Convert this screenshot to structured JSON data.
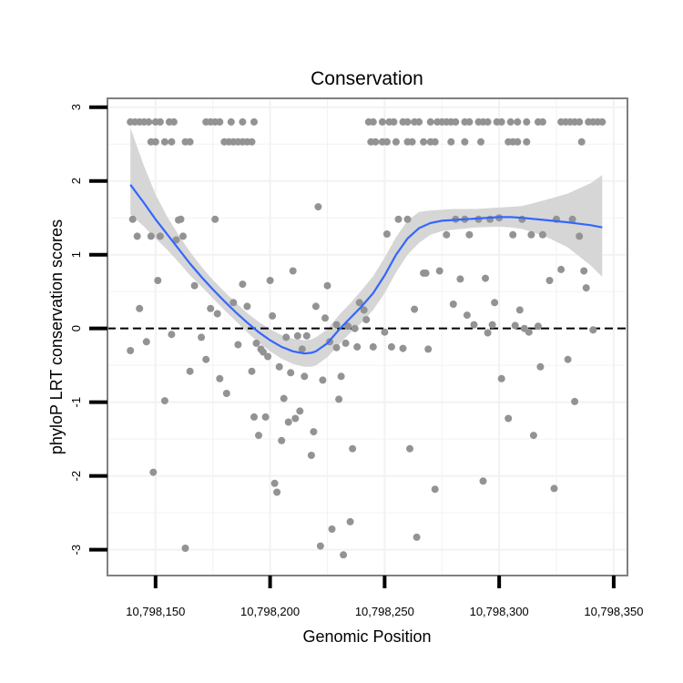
{
  "chart_data": {
    "type": "scatter",
    "title": "Conservation",
    "xlabel": "Genomic Position",
    "ylabel": "phyloP LRT conservation scores",
    "xlim": [
      10798129,
      10798356
    ],
    "ylim": [
      -3.35,
      3.12
    ],
    "x_ticks": [
      10798150,
      10798200,
      10798250,
      10798300,
      10798350
    ],
    "x_tick_labels": [
      "10,798,150",
      "10,798,200",
      "10,798,250",
      "10,798,300",
      "10,798,350"
    ],
    "y_ticks": [
      -3,
      -2,
      -1,
      0,
      1,
      2,
      3
    ],
    "y_tick_labels": [
      "-3",
      "-2",
      "-1",
      "0",
      "1",
      "2",
      "3"
    ],
    "reference_line": {
      "y": 0,
      "style": "dashed"
    },
    "grid": true,
    "colors": {
      "points": "#939393",
      "smooth_line": "#3366ff",
      "confidence_band": "#d6d6d6",
      "panel_border": "#808080",
      "grid": "#f2f2f2",
      "reference_line": "#000000",
      "ticks": "#000000"
    },
    "points": [
      {
        "x": 10798139,
        "y": 2.8
      },
      {
        "x": 10798141,
        "y": 2.8
      },
      {
        "x": 10798143,
        "y": 2.8
      },
      {
        "x": 10798145,
        "y": 2.8
      },
      {
        "x": 10798147,
        "y": 2.8
      },
      {
        "x": 10798150,
        "y": 2.8
      },
      {
        "x": 10798152,
        "y": 2.8
      },
      {
        "x": 10798156,
        "y": 2.8
      },
      {
        "x": 10798158,
        "y": 2.8
      },
      {
        "x": 10798172,
        "y": 2.8
      },
      {
        "x": 10798174,
        "y": 2.8
      },
      {
        "x": 10798176,
        "y": 2.8
      },
      {
        "x": 10798178,
        "y": 2.8
      },
      {
        "x": 10798183,
        "y": 2.8
      },
      {
        "x": 10798188,
        "y": 2.8
      },
      {
        "x": 10798193,
        "y": 2.8
      },
      {
        "x": 10798148,
        "y": 2.53
      },
      {
        "x": 10798150,
        "y": 2.53
      },
      {
        "x": 10798154,
        "y": 2.53
      },
      {
        "x": 10798157,
        "y": 2.53
      },
      {
        "x": 10798163,
        "y": 2.53
      },
      {
        "x": 10798165,
        "y": 2.53
      },
      {
        "x": 10798180,
        "y": 2.53
      },
      {
        "x": 10798182,
        "y": 2.53
      },
      {
        "x": 10798184,
        "y": 2.53
      },
      {
        "x": 10798186,
        "y": 2.53
      },
      {
        "x": 10798188,
        "y": 2.53
      },
      {
        "x": 10798190,
        "y": 2.53
      },
      {
        "x": 10798192,
        "y": 2.53
      },
      {
        "x": 10798243,
        "y": 2.8
      },
      {
        "x": 10798245,
        "y": 2.8
      },
      {
        "x": 10798249,
        "y": 2.8
      },
      {
        "x": 10798252,
        "y": 2.8
      },
      {
        "x": 10798254,
        "y": 2.8
      },
      {
        "x": 10798258,
        "y": 2.8
      },
      {
        "x": 10798260,
        "y": 2.8
      },
      {
        "x": 10798263,
        "y": 2.8
      },
      {
        "x": 10798265,
        "y": 2.8
      },
      {
        "x": 10798270,
        "y": 2.8
      },
      {
        "x": 10798273,
        "y": 2.8
      },
      {
        "x": 10798275,
        "y": 2.8
      },
      {
        "x": 10798277,
        "y": 2.8
      },
      {
        "x": 10798279,
        "y": 2.8
      },
      {
        "x": 10798281,
        "y": 2.8
      },
      {
        "x": 10798285,
        "y": 2.8
      },
      {
        "x": 10798287,
        "y": 2.8
      },
      {
        "x": 10798291,
        "y": 2.8
      },
      {
        "x": 10798293,
        "y": 2.8
      },
      {
        "x": 10798295,
        "y": 2.8
      },
      {
        "x": 10798299,
        "y": 2.8
      },
      {
        "x": 10798301,
        "y": 2.8
      },
      {
        "x": 10798305,
        "y": 2.8
      },
      {
        "x": 10798308,
        "y": 2.8
      },
      {
        "x": 10798312,
        "y": 2.8
      },
      {
        "x": 10798317,
        "y": 2.8
      },
      {
        "x": 10798319,
        "y": 2.8
      },
      {
        "x": 10798327,
        "y": 2.8
      },
      {
        "x": 10798329,
        "y": 2.8
      },
      {
        "x": 10798331,
        "y": 2.8
      },
      {
        "x": 10798333,
        "y": 2.8
      },
      {
        "x": 10798335,
        "y": 2.8
      },
      {
        "x": 10798339,
        "y": 2.8
      },
      {
        "x": 10798341,
        "y": 2.8
      },
      {
        "x": 10798343,
        "y": 2.8
      },
      {
        "x": 10798345,
        "y": 2.8
      },
      {
        "x": 10798244,
        "y": 2.53
      },
      {
        "x": 10798246,
        "y": 2.53
      },
      {
        "x": 10798249,
        "y": 2.53
      },
      {
        "x": 10798251,
        "y": 2.53
      },
      {
        "x": 10798255,
        "y": 2.53
      },
      {
        "x": 10798260,
        "y": 2.53
      },
      {
        "x": 10798262,
        "y": 2.53
      },
      {
        "x": 10798267,
        "y": 2.53
      },
      {
        "x": 10798270,
        "y": 2.53
      },
      {
        "x": 10798272,
        "y": 2.53
      },
      {
        "x": 10798279,
        "y": 2.53
      },
      {
        "x": 10798285,
        "y": 2.53
      },
      {
        "x": 10798292,
        "y": 2.53
      },
      {
        "x": 10798304,
        "y": 2.53
      },
      {
        "x": 10798306,
        "y": 2.53
      },
      {
        "x": 10798308,
        "y": 2.53
      },
      {
        "x": 10798312,
        "y": 2.53
      },
      {
        "x": 10798336,
        "y": 2.53
      },
      {
        "x": 10798140,
        "y": 1.48
      },
      {
        "x": 10798142,
        "y": 1.25
      },
      {
        "x": 10798143,
        "y": 0.27
      },
      {
        "x": 10798139,
        "y": -0.3
      },
      {
        "x": 10798146,
        "y": -0.18
      },
      {
        "x": 10798148,
        "y": 1.25
      },
      {
        "x": 10798149,
        "y": -1.95
      },
      {
        "x": 10798151,
        "y": 0.65
      },
      {
        "x": 10798152,
        "y": 1.25
      },
      {
        "x": 10798154,
        "y": -0.98
      },
      {
        "x": 10798157,
        "y": -0.08
      },
      {
        "x": 10798159,
        "y": 1.2
      },
      {
        "x": 10798160,
        "y": 1.47
      },
      {
        "x": 10798161,
        "y": 1.48
      },
      {
        "x": 10798162,
        "y": 1.25
      },
      {
        "x": 10798163,
        "y": -2.98
      },
      {
        "x": 10798165,
        "y": -0.58
      },
      {
        "x": 10798167,
        "y": 0.58
      },
      {
        "x": 10798170,
        "y": -0.12
      },
      {
        "x": 10798172,
        "y": -0.42
      },
      {
        "x": 10798174,
        "y": 0.27
      },
      {
        "x": 10798176,
        "y": 1.48
      },
      {
        "x": 10798177,
        "y": 0.2
      },
      {
        "x": 10798178,
        "y": -0.68
      },
      {
        "x": 10798181,
        "y": -0.88
      },
      {
        "x": 10798184,
        "y": 0.35
      },
      {
        "x": 10798186,
        "y": -0.22
      },
      {
        "x": 10798188,
        "y": 0.6
      },
      {
        "x": 10798190,
        "y": 0.3
      },
      {
        "x": 10798192,
        "y": -0.58
      },
      {
        "x": 10798193,
        "y": -1.2
      },
      {
        "x": 10798194,
        "y": -0.2
      },
      {
        "x": 10798195,
        "y": -1.45
      },
      {
        "x": 10798196,
        "y": -0.28
      },
      {
        "x": 10798197,
        "y": -0.32
      },
      {
        "x": 10798198,
        "y": -1.2
      },
      {
        "x": 10798199,
        "y": -0.38
      },
      {
        "x": 10798200,
        "y": 0.65
      },
      {
        "x": 10798201,
        "y": 0.17
      },
      {
        "x": 10798202,
        "y": -2.1
      },
      {
        "x": 10798203,
        "y": -2.22
      },
      {
        "x": 10798204,
        "y": -0.52
      },
      {
        "x": 10798205,
        "y": -1.52
      },
      {
        "x": 10798206,
        "y": -0.95
      },
      {
        "x": 10798207,
        "y": -0.12
      },
      {
        "x": 10798208,
        "y": -1.27
      },
      {
        "x": 10798209,
        "y": -0.6
      },
      {
        "x": 10798210,
        "y": 0.78
      },
      {
        "x": 10798211,
        "y": -1.22
      },
      {
        "x": 10798212,
        "y": -0.1
      },
      {
        "x": 10798213,
        "y": -1.12
      },
      {
        "x": 10798214,
        "y": -0.28
      },
      {
        "x": 10798215,
        "y": -0.65
      },
      {
        "x": 10798216,
        "y": -0.1
      },
      {
        "x": 10798218,
        "y": -1.72
      },
      {
        "x": 10798219,
        "y": -1.4
      },
      {
        "x": 10798220,
        "y": 0.3
      },
      {
        "x": 10798221,
        "y": 1.65
      },
      {
        "x": 10798222,
        "y": -2.95
      },
      {
        "x": 10798223,
        "y": -0.7
      },
      {
        "x": 10798224,
        "y": 0.14
      },
      {
        "x": 10798225,
        "y": 0.58
      },
      {
        "x": 10798226,
        "y": -0.18
      },
      {
        "x": 10798227,
        "y": -2.72
      },
      {
        "x": 10798229,
        "y": 0.05
      },
      {
        "x": 10798229,
        "y": -0.26
      },
      {
        "x": 10798230,
        "y": -0.96
      },
      {
        "x": 10798231,
        "y": -0.65
      },
      {
        "x": 10798232,
        "y": -3.07
      },
      {
        "x": 10798233,
        "y": -0.2
      },
      {
        "x": 10798234,
        "y": 0.03
      },
      {
        "x": 10798235,
        "y": -2.62
      },
      {
        "x": 10798236,
        "y": -1.63
      },
      {
        "x": 10798237,
        "y": 0.0
      },
      {
        "x": 10798238,
        "y": -0.25
      },
      {
        "x": 10798239,
        "y": 0.35
      },
      {
        "x": 10798241,
        "y": 0.25
      },
      {
        "x": 10798242,
        "y": 0.12
      },
      {
        "x": 10798245,
        "y": -0.25
      },
      {
        "x": 10798250,
        "y": -0.05
      },
      {
        "x": 10798251,
        "y": 1.28
      },
      {
        "x": 10798253,
        "y": -0.25
      },
      {
        "x": 10798256,
        "y": 1.48
      },
      {
        "x": 10798258,
        "y": -0.27
      },
      {
        "x": 10798260,
        "y": 1.48
      },
      {
        "x": 10798261,
        "y": -1.63
      },
      {
        "x": 10798263,
        "y": 0.26
      },
      {
        "x": 10798264,
        "y": -2.83
      },
      {
        "x": 10798267,
        "y": 0.75
      },
      {
        "x": 10798268,
        "y": 0.75
      },
      {
        "x": 10798269,
        "y": -0.28
      },
      {
        "x": 10798272,
        "y": -2.18
      },
      {
        "x": 10798274,
        "y": 0.78
      },
      {
        "x": 10798277,
        "y": 1.27
      },
      {
        "x": 10798280,
        "y": 0.33
      },
      {
        "x": 10798281,
        "y": 1.48
      },
      {
        "x": 10798283,
        "y": 0.67
      },
      {
        "x": 10798285,
        "y": 1.48
      },
      {
        "x": 10798286,
        "y": 0.18
      },
      {
        "x": 10798287,
        "y": 1.27
      },
      {
        "x": 10798289,
        "y": 0.05
      },
      {
        "x": 10798291,
        "y": 1.48
      },
      {
        "x": 10798293,
        "y": -2.07
      },
      {
        "x": 10798294,
        "y": 0.68
      },
      {
        "x": 10798295,
        "y": -0.06
      },
      {
        "x": 10798296,
        "y": 1.48
      },
      {
        "x": 10798297,
        "y": 0.05
      },
      {
        "x": 10798298,
        "y": 0.35
      },
      {
        "x": 10798300,
        "y": 1.5
      },
      {
        "x": 10798301,
        "y": -0.68
      },
      {
        "x": 10798304,
        "y": -1.22
      },
      {
        "x": 10798306,
        "y": 1.27
      },
      {
        "x": 10798307,
        "y": 0.04
      },
      {
        "x": 10798309,
        "y": 0.25
      },
      {
        "x": 10798310,
        "y": 1.48
      },
      {
        "x": 10798311,
        "y": 0.0
      },
      {
        "x": 10798313,
        "y": -0.05
      },
      {
        "x": 10798314,
        "y": 1.27
      },
      {
        "x": 10798315,
        "y": -1.45
      },
      {
        "x": 10798317,
        "y": 0.03
      },
      {
        "x": 10798318,
        "y": -0.52
      },
      {
        "x": 10798319,
        "y": 1.27
      },
      {
        "x": 10798322,
        "y": 0.65
      },
      {
        "x": 10798324,
        "y": -2.17
      },
      {
        "x": 10798325,
        "y": 1.48
      },
      {
        "x": 10798327,
        "y": 0.8
      },
      {
        "x": 10798330,
        "y": -0.42
      },
      {
        "x": 10798333,
        "y": -0.99
      },
      {
        "x": 10798335,
        "y": 1.25
      },
      {
        "x": 10798337,
        "y": 0.78
      },
      {
        "x": 10798338,
        "y": 0.55
      },
      {
        "x": 10798341,
        "y": -0.02
      },
      {
        "x": 10798332,
        "y": 1.48
      }
    ],
    "smooth_curve": {
      "x": [
        10798139,
        10798145,
        10798150,
        10798155,
        10798160,
        10798165,
        10798170,
        10798175,
        10798180,
        10798185,
        10798190,
        10798195,
        10798200,
        10798205,
        10798210,
        10798215,
        10798218,
        10798220,
        10798225,
        10798230,
        10798235,
        10798240,
        10798245,
        10798250,
        10798255,
        10798260,
        10798265,
        10798270,
        10798275,
        10798280,
        10798290,
        10798300,
        10798305,
        10798310,
        10798320,
        10798330,
        10798340,
        10798345
      ],
      "y": [
        1.95,
        1.7,
        1.48,
        1.28,
        1.08,
        0.88,
        0.7,
        0.53,
        0.37,
        0.22,
        0.08,
        -0.05,
        -0.16,
        -0.25,
        -0.31,
        -0.34,
        -0.33,
        -0.31,
        -0.2,
        -0.02,
        0.14,
        0.3,
        0.48,
        0.72,
        1.0,
        1.22,
        1.36,
        1.43,
        1.46,
        1.47,
        1.49,
        1.51,
        1.51,
        1.5,
        1.47,
        1.44,
        1.4,
        1.37
      ],
      "lower": [
        1.55,
        1.38,
        1.22,
        1.07,
        0.9,
        0.72,
        0.57,
        0.41,
        0.25,
        0.1,
        -0.05,
        -0.19,
        -0.31,
        -0.41,
        -0.48,
        -0.52,
        -0.52,
        -0.5,
        -0.39,
        -0.22,
        -0.06,
        0.08,
        0.25,
        0.48,
        0.76,
        1.0,
        1.16,
        1.27,
        1.32,
        1.34,
        1.37,
        1.38,
        1.37,
        1.35,
        1.25,
        1.1,
        0.85,
        0.7
      ],
      "upper": [
        2.72,
        2.2,
        1.82,
        1.52,
        1.27,
        1.04,
        0.84,
        0.66,
        0.5,
        0.35,
        0.21,
        0.09,
        -0.01,
        -0.09,
        -0.14,
        -0.16,
        -0.15,
        -0.12,
        -0.01,
        0.18,
        0.34,
        0.52,
        0.71,
        0.96,
        1.24,
        1.46,
        1.58,
        1.6,
        1.61,
        1.62,
        1.62,
        1.64,
        1.65,
        1.66,
        1.74,
        1.83,
        1.97,
        2.08
      ]
    }
  }
}
